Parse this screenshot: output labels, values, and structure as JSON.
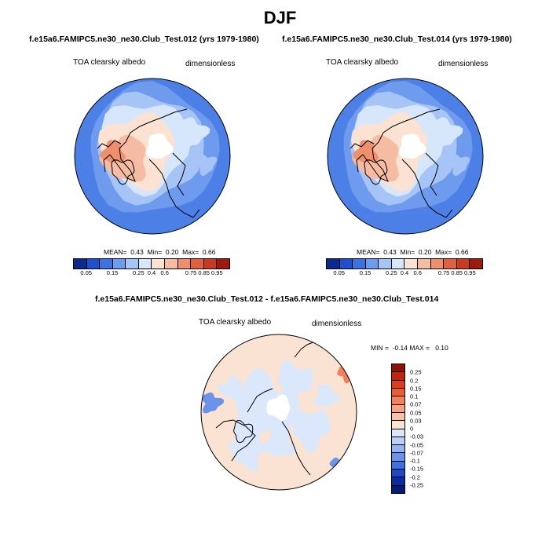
{
  "season": "DJF",
  "panels": [
    {
      "title": "f.e15a6.FAMIPC5.ne30_ne30.Club_Test.012 (yrs 1979-1980)",
      "field": "TOA clearsky albedo",
      "units": "dimensionless",
      "stats": "MEAN=  0.43  Min=  0.20  Max=  0.66"
    },
    {
      "title": "f.e15a6.FAMIPC5.ne30_ne30.Club_Test.014 (yrs 1979-1980)",
      "field": "TOA clearsky albedo",
      "units": "dimensionless",
      "stats": "MEAN=  0.43  Min=  0.20  Max=  0.66"
    },
    {
      "title": "f.e15a6.FAMIPC5.ne30_ne30.Club_Test.012 - f.e15a6.FAMIPC5.ne30_ne30.Club_Test.014",
      "field": "TOA clearsky albedo",
      "units": "dimensionless",
      "stats": "MIN =  -0.14 MAX =   0.10"
    }
  ],
  "colorbar_abs": {
    "labels": [
      "0.05",
      "0.15",
      "0.25",
      "0.4",
      "0.6",
      "0.75",
      "0.85",
      "0.95"
    ],
    "colors": [
      "#0a2a8c",
      "#1f4fcc",
      "#3d72e0",
      "#6f9bef",
      "#a7c4f6",
      "#d6e6fb",
      "#fbe2d2",
      "#f6bca3",
      "#ee8f6d",
      "#e2603f",
      "#c93a1e",
      "#9c1b0c"
    ]
  },
  "colorbar_diff": {
    "labels": [
      "0.25",
      "0.2",
      "0.15",
      "0.1",
      "0.07",
      "0.05",
      "0.03",
      "0",
      "-0.03",
      "-0.05",
      "-0.07",
      "-0.1",
      "-0.15",
      "-0.2",
      "-0.25"
    ],
    "colors": [
      "#8e1206",
      "#c0250e",
      "#e13c1c",
      "#ee5a31",
      "#f47f58",
      "#f7a282",
      "#f9c2a8",
      "#fbe3d3",
      "#dbe8fb",
      "#b8d0f7",
      "#93b4f2",
      "#6b93ea",
      "#3f6fe0",
      "#1e48c7",
      "#0e2aa0",
      "#071a78"
    ]
  }
}
